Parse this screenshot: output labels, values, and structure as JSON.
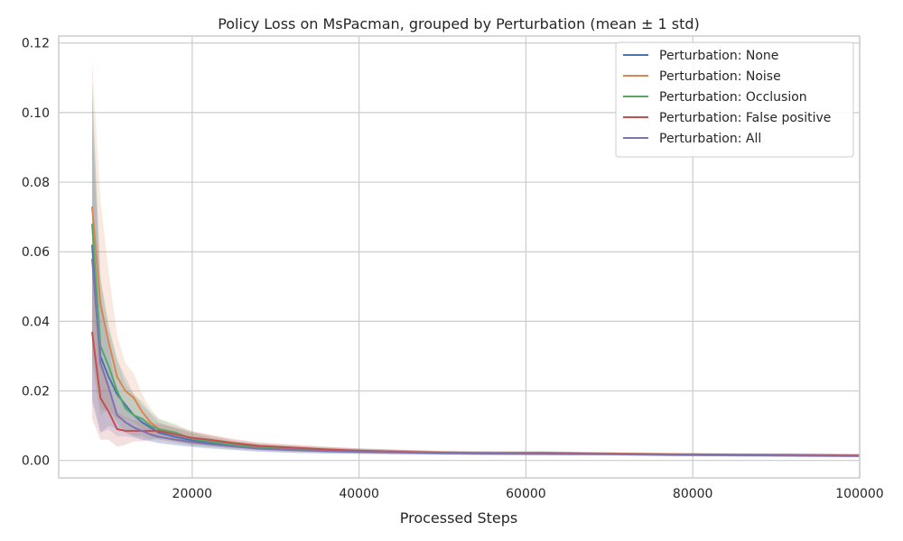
{
  "chart_data": {
    "type": "line",
    "title": "Policy Loss on MsPacman, grouped by Perturbation (mean ± 1 std)",
    "xlabel": "Processed Steps",
    "ylabel": "",
    "xlim": [
      4000,
      100000
    ],
    "ylim": [
      -0.005,
      0.122
    ],
    "xticks": [
      20000,
      40000,
      60000,
      80000,
      100000
    ],
    "xtick_labels": [
      "20000",
      "40000",
      "60000",
      "80000",
      "100000"
    ],
    "yticks": [
      0.0,
      0.02,
      0.04,
      0.06,
      0.08,
      0.1,
      0.12
    ],
    "ytick_labels": [
      "0.00",
      "0.02",
      "0.04",
      "0.06",
      "0.08",
      "0.10",
      "0.12"
    ],
    "grid": true,
    "legend_position": "top-right",
    "x": [
      8000,
      9000,
      10000,
      11000,
      12000,
      13000,
      14000,
      15000,
      16000,
      18000,
      20000,
      22000,
      25000,
      28000,
      32000,
      36000,
      40000,
      45000,
      50000,
      55000,
      62000,
      70000,
      78000,
      85000,
      92000,
      100000
    ],
    "series": [
      {
        "name": "Perturbation: None",
        "color": "#4c72b0",
        "values": [
          0.062,
          0.03,
          0.024,
          0.019,
          0.016,
          0.013,
          0.011,
          0.0095,
          0.008,
          0.0068,
          0.0058,
          0.005,
          0.0042,
          0.0036,
          0.0031,
          0.0028,
          0.0026,
          0.0024,
          0.0022,
          0.0021,
          0.002,
          0.0019,
          0.0017,
          0.0016,
          0.0015,
          0.0014
        ],
        "std": [
          0.045,
          0.022,
          0.014,
          0.01,
          0.008,
          0.006,
          0.005,
          0.004,
          0.003,
          0.0025,
          0.002,
          0.0016,
          0.0012,
          0.001,
          0.0009,
          0.0008,
          0.0007,
          0.0006,
          0.0005,
          0.0005,
          0.0005,
          0.0004,
          0.0004,
          0.0004,
          0.0004,
          0.0004
        ]
      },
      {
        "name": "Perturbation: Noise",
        "color": "#dd8452",
        "values": [
          0.073,
          0.045,
          0.034,
          0.024,
          0.02,
          0.018,
          0.014,
          0.011,
          0.009,
          0.0075,
          0.0065,
          0.0057,
          0.0047,
          0.004,
          0.0035,
          0.0031,
          0.0028,
          0.0025,
          0.0023,
          0.0022,
          0.0021,
          0.002,
          0.0018,
          0.0017,
          0.0016,
          0.0015
        ],
        "std": [
          0.042,
          0.03,
          0.02,
          0.012,
          0.008,
          0.007,
          0.005,
          0.004,
          0.003,
          0.0025,
          0.002,
          0.0016,
          0.0012,
          0.001,
          0.0009,
          0.0008,
          0.0007,
          0.0006,
          0.0005,
          0.0005,
          0.0005,
          0.0004,
          0.0004,
          0.0004,
          0.0004,
          0.0004
        ]
      },
      {
        "name": "Perturbation: Occlusion",
        "color": "#55a868",
        "values": [
          0.068,
          0.033,
          0.027,
          0.02,
          0.015,
          0.013,
          0.012,
          0.01,
          0.009,
          0.008,
          0.0062,
          0.0055,
          0.0045,
          0.0038,
          0.0033,
          0.0029,
          0.0027,
          0.0024,
          0.0022,
          0.0021,
          0.0022,
          0.0019,
          0.0017,
          0.0016,
          0.0015,
          0.0014
        ],
        "std": [
          0.04,
          0.02,
          0.012,
          0.009,
          0.007,
          0.006,
          0.005,
          0.004,
          0.003,
          0.0025,
          0.002,
          0.0016,
          0.0012,
          0.001,
          0.0009,
          0.0008,
          0.0007,
          0.0006,
          0.0005,
          0.0005,
          0.0005,
          0.0004,
          0.0004,
          0.0004,
          0.0004,
          0.0004
        ]
      },
      {
        "name": "Perturbation: False positive",
        "color": "#c44e52",
        "values": [
          0.037,
          0.018,
          0.014,
          0.009,
          0.0085,
          0.0085,
          0.0085,
          0.0085,
          0.0085,
          0.0075,
          0.0065,
          0.006,
          0.005,
          0.0042,
          0.0037,
          0.0032,
          0.0028,
          0.0025,
          0.0022,
          0.0021,
          0.0021,
          0.0019,
          0.0017,
          0.0016,
          0.0016,
          0.0014
        ],
        "std": [
          0.025,
          0.012,
          0.008,
          0.005,
          0.004,
          0.003,
          0.003,
          0.0025,
          0.002,
          0.002,
          0.0018,
          0.0015,
          0.0012,
          0.001,
          0.0009,
          0.0008,
          0.0007,
          0.0006,
          0.0005,
          0.0005,
          0.0005,
          0.0004,
          0.0004,
          0.0004,
          0.0004,
          0.0004
        ]
      },
      {
        "name": "Perturbation: All",
        "color": "#8172b3",
        "values": [
          0.058,
          0.028,
          0.021,
          0.013,
          0.011,
          0.0095,
          0.0085,
          0.0075,
          0.0068,
          0.006,
          0.0053,
          0.0047,
          0.004,
          0.0034,
          0.003,
          0.0027,
          0.0025,
          0.0023,
          0.0021,
          0.002,
          0.0019,
          0.0018,
          0.0016,
          0.0015,
          0.0014,
          0.0013
        ],
        "std": [
          0.04,
          0.02,
          0.012,
          0.006,
          0.004,
          0.003,
          0.0025,
          0.002,
          0.0018,
          0.0015,
          0.0013,
          0.0011,
          0.001,
          0.0009,
          0.0008,
          0.0007,
          0.0006,
          0.0006,
          0.0005,
          0.0005,
          0.0005,
          0.0004,
          0.0004,
          0.0004,
          0.0004,
          0.0004
        ]
      }
    ]
  }
}
